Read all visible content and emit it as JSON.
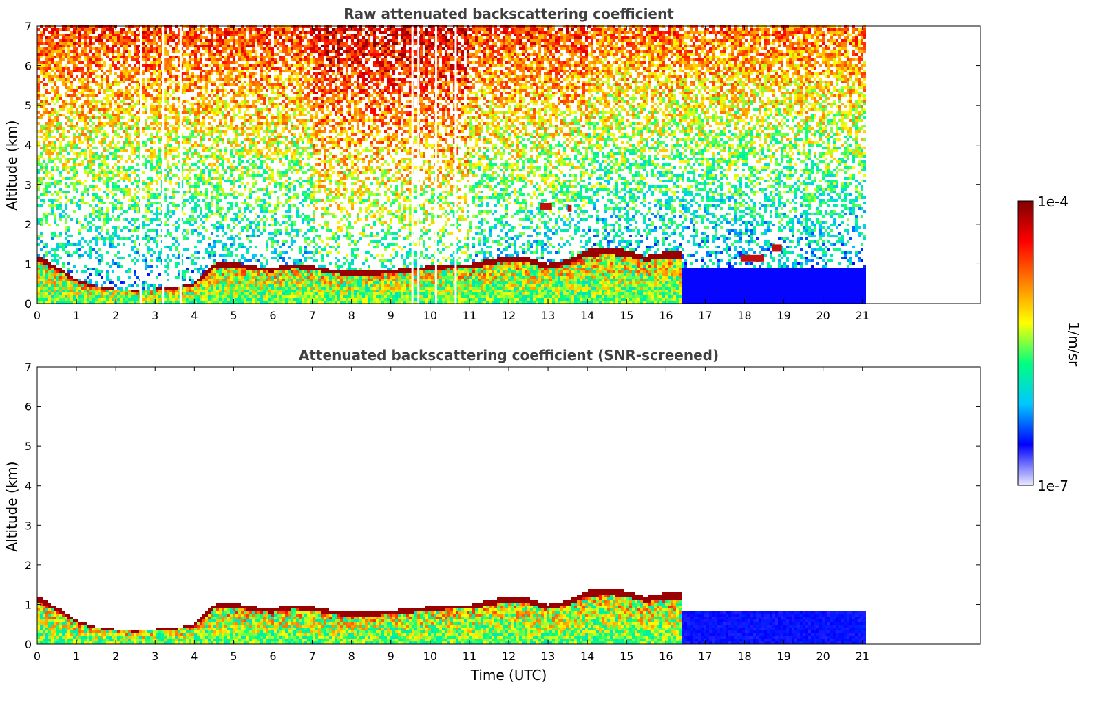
{
  "chart_data": [
    {
      "type": "heatmap",
      "title": "Raw attenuated backscattering coefficient",
      "xlabel": "",
      "ylabel": "Altitude (km)",
      "xlim": [
        0,
        24
      ],
      "ylim": [
        0,
        7
      ],
      "x_ticks": [
        0,
        1,
        2,
        3,
        4,
        5,
        6,
        7,
        8,
        9,
        10,
        11,
        12,
        13,
        14,
        15,
        16,
        17,
        18,
        19,
        20,
        21
      ],
      "y_ticks": [
        0,
        1,
        2,
        3,
        4,
        5,
        6,
        7
      ],
      "data_extent_x": [
        0,
        21.1
      ],
      "grid": false,
      "layer_top_km": [
        [
          0,
          1.2
        ],
        [
          0.5,
          0.95
        ],
        [
          1,
          0.6
        ],
        [
          1.5,
          0.45
        ],
        [
          2,
          0.38
        ],
        [
          2.5,
          0.35
        ],
        [
          3,
          0.38
        ],
        [
          3.5,
          0.42
        ],
        [
          4,
          0.5
        ],
        [
          4.5,
          1.0
        ],
        [
          5,
          1.05
        ],
        [
          5.5,
          0.95
        ],
        [
          6,
          0.9
        ],
        [
          6.5,
          1.0
        ],
        [
          7,
          0.95
        ],
        [
          7.5,
          0.85
        ],
        [
          8,
          0.8
        ],
        [
          8.5,
          0.8
        ],
        [
          9,
          0.85
        ],
        [
          9.5,
          0.9
        ],
        [
          10,
          0.95
        ],
        [
          10.5,
          1.0
        ],
        [
          11,
          1.0
        ],
        [
          11.5,
          1.1
        ],
        [
          12,
          1.2
        ],
        [
          12.5,
          1.15
        ],
        [
          13,
          1.0
        ],
        [
          13.5,
          1.1
        ],
        [
          14,
          1.35
        ],
        [
          14.5,
          1.4
        ],
        [
          15,
          1.35
        ],
        [
          15.5,
          1.2
        ],
        [
          16,
          1.3
        ],
        [
          16.5,
          1.3
        ]
      ],
      "gaps_utc": [
        2.65,
        3.2,
        3.65,
        9.55,
        9.7,
        10.15,
        10.65
      ],
      "elevated_features": [
        {
          "x": [
            12.8,
            13.1
          ],
          "y": 2.45
        },
        {
          "x": [
            13.5,
            13.6
          ],
          "y": 2.4
        },
        {
          "x": [
            17.9,
            18.5
          ],
          "y": 1.15
        },
        {
          "x": [
            18.7,
            18.95
          ],
          "y": 1.4
        }
      ]
    },
    {
      "type": "heatmap",
      "title": "Attenuated backscattering coefficient (SNR-screened)",
      "xlabel": "Time (UTC)",
      "ylabel": "Altitude (km)",
      "xlim": [
        0,
        24
      ],
      "ylim": [
        0,
        7
      ],
      "x_ticks": [
        0,
        1,
        2,
        3,
        4,
        5,
        6,
        7,
        8,
        9,
        10,
        11,
        12,
        13,
        14,
        15,
        16,
        17,
        18,
        19,
        20,
        21
      ],
      "y_ticks": [
        0,
        1,
        2,
        3,
        4,
        5,
        6,
        7
      ],
      "data_extent_x": [
        0,
        21.1
      ],
      "grid": false
    }
  ],
  "colorbar": {
    "label": "1/m/sr",
    "max_label": "1e-4",
    "min_label": "1e-7",
    "scale": "log",
    "range": [
      1e-07,
      0.0001
    ],
    "colormap": [
      "#e8e8ff",
      "#0000ff",
      "#00c8ff",
      "#00ff80",
      "#ffff00",
      "#ff8000",
      "#ff0000",
      "#800000"
    ]
  }
}
